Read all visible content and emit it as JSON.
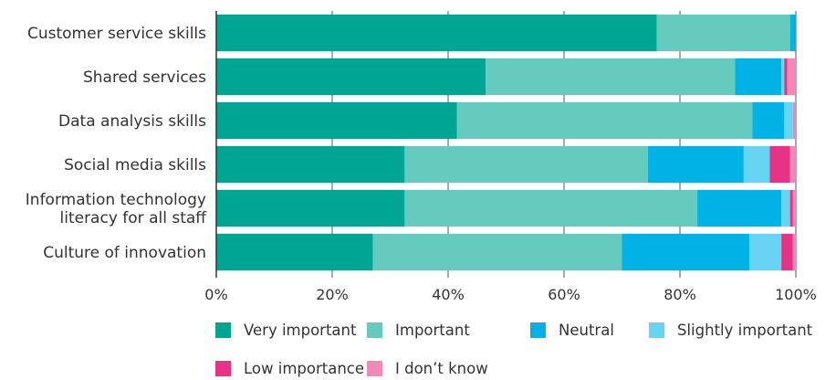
{
  "chart_data": {
    "type": "bar",
    "orientation": "horizontal",
    "stacked": true,
    "title": "",
    "xlabel": "",
    "ylabel": "",
    "xlim": [
      0,
      100
    ],
    "x_ticks": [
      "0%",
      "20%",
      "40%",
      "60%",
      "80%",
      "100%"
    ],
    "grid": "vertical",
    "legend_position": "bottom",
    "categories": [
      [
        "Customer service skills"
      ],
      [
        "Shared services"
      ],
      [
        "Data analysis skills"
      ],
      [
        "Social media skills"
      ],
      [
        "Information technology",
        "literacy for all staff"
      ],
      [
        "Culture of innovation"
      ]
    ],
    "series": [
      {
        "name": "Very important",
        "color": "#00a693",
        "values": [
          76,
          46.5,
          41.5,
          32.5,
          32.5,
          27
        ]
      },
      {
        "name": "Important",
        "color": "#66cbbf",
        "values": [
          23,
          43,
          51,
          42,
          50.5,
          43
        ]
      },
      {
        "name": "Neutral",
        "color": "#00b2e6",
        "values": [
          1,
          8,
          5.5,
          16.5,
          14.5,
          22
        ]
      },
      {
        "name": "Slightly important",
        "color": "#66d4f2",
        "values": [
          0,
          0.5,
          1.5,
          4.5,
          1.5,
          5.5
        ]
      },
      {
        "name": "Low importance",
        "color": "#e63386",
        "values": [
          0,
          0.5,
          0,
          3.5,
          0.5,
          2
        ]
      },
      {
        "name": "I don’t know",
        "color": "#f288b8",
        "values": [
          0,
          1.5,
          0.5,
          1,
          0.5,
          0.5
        ]
      }
    ]
  }
}
